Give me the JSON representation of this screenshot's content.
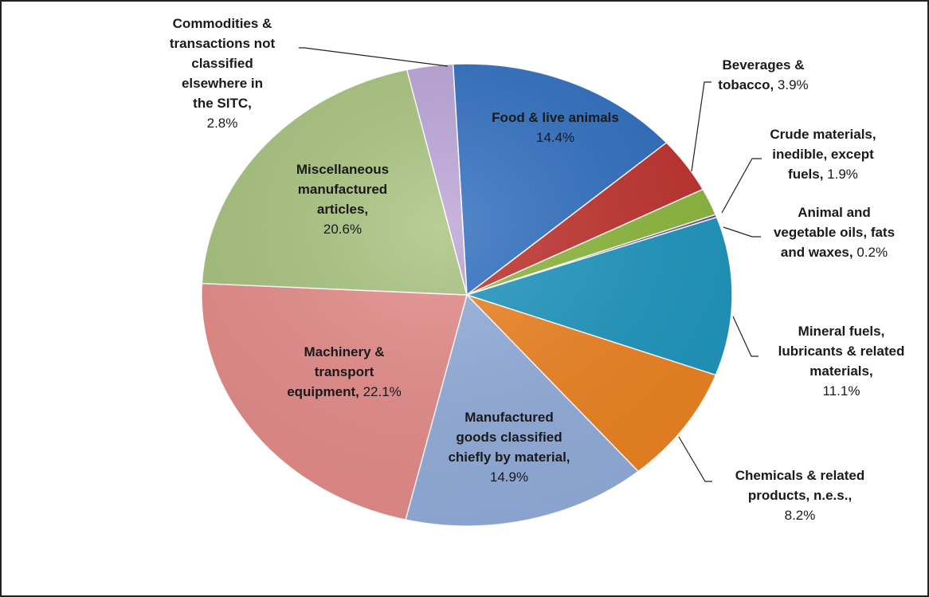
{
  "chart_data": {
    "type": "pie",
    "title": "",
    "start_angle_deg": -3,
    "direction": "clockwise",
    "slices": [
      {
        "name": "Food  & live animals",
        "value": 14.4,
        "label_lines": [
          [
            "Food  & live animals",
            ""
          ],
          [
            "",
            "14.4%"
          ]
        ],
        "color": "#2E6EC0"
      },
      {
        "name": "Beverages & tobacco",
        "value": 3.9,
        "label_lines": [
          [
            "Beverages &",
            ""
          ],
          [
            "tobacco,",
            " 3.9%"
          ]
        ],
        "color": "#C0312D"
      },
      {
        "name": "Crude materials, inedible, except fuels",
        "value": 1.9,
        "label_lines": [
          [
            "Crude materials,",
            ""
          ],
          [
            "inedible, except",
            ""
          ],
          [
            "fuels,",
            " 1.9%"
          ]
        ],
        "color": "#8DB83C"
      },
      {
        "name": "Animal and vegetable oils, fats and waxes",
        "value": 0.2,
        "label_lines": [
          [
            "Animal and",
            ""
          ],
          [
            "vegetable oils, fats",
            ""
          ],
          [
            "and waxes,",
            " 0.2%"
          ]
        ],
        "color": "#6B4A96"
      },
      {
        "name": "Mineral fuels, lubricants & related materials",
        "value": 11.1,
        "label_lines": [
          [
            "Mineral fuels,",
            ""
          ],
          [
            "lubricants & related",
            ""
          ],
          [
            "materials,",
            ""
          ],
          [
            "",
            "11.1%"
          ]
        ],
        "color": "#1E96BF"
      },
      {
        "name": "Chemicals & related products, n.e.s.",
        "value": 8.2,
        "label_lines": [
          [
            "Chemicals & related",
            ""
          ],
          [
            "products, n.e.s.,",
            ""
          ],
          [
            "",
            "8.2%"
          ]
        ],
        "color": "#EE8321"
      },
      {
        "name": "Manufactured goods classified chiefly by material",
        "value": 14.9,
        "label_lines": [
          [
            "Manufactured",
            ""
          ],
          [
            "goods classified",
            ""
          ],
          [
            "chiefly by material,",
            ""
          ],
          [
            "",
            "14.9%"
          ]
        ],
        "color": "#93AEDC"
      },
      {
        "name": "Machinery & transport equipment",
        "value": 22.1,
        "label_lines": [
          [
            "Machinery &",
            ""
          ],
          [
            "transport",
            ""
          ],
          [
            "equipment,",
            " 22.1%"
          ]
        ],
        "color": "#E68C8A"
      },
      {
        "name": "Miscellaneous manufactured articles",
        "value": 20.6,
        "label_lines": [
          [
            "Miscellaneous",
            ""
          ],
          [
            "manufactured",
            ""
          ],
          [
            "articles,",
            ""
          ],
          [
            "",
            "20.6%"
          ]
        ],
        "color": "#A8C37E"
      },
      {
        "name": "Commodities & transactions not classified elsewhere in the SITC",
        "value": 2.8,
        "label_lines": [
          [
            "Commodities &",
            ""
          ],
          [
            "transactions not",
            ""
          ],
          [
            "classified",
            ""
          ],
          [
            "elsewhere in",
            ""
          ],
          [
            "the SITC,",
            ""
          ],
          [
            "",
            "2.8%"
          ]
        ],
        "color": "#BBA4D8"
      }
    ]
  }
}
